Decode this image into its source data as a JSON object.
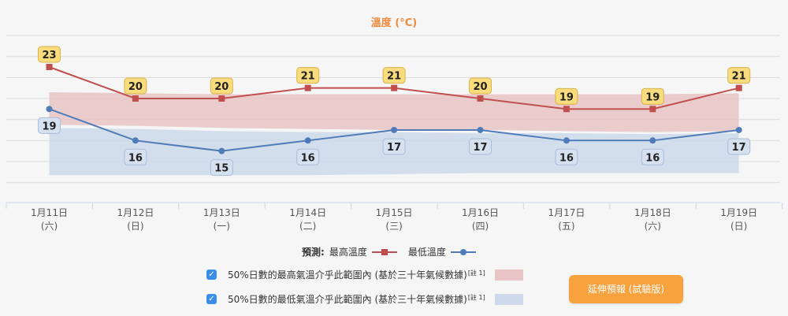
{
  "chart_data": {
    "type": "line",
    "title": "溫度 (°C)",
    "xlabel": "",
    "ylabel": "",
    "ylim": [
      11,
      27
    ],
    "grid": true,
    "categories": [
      "1月11日 (六)",
      "1月12日 (日)",
      "1月13日 (一)",
      "1月14日 (二)",
      "1月15日 (三)",
      "1月16日 (四)",
      "1月17日 (五)",
      "1月18日 (六)",
      "1月19日 (日)"
    ],
    "series": [
      {
        "name": "最高溫度",
        "color": "#c0504d",
        "marker": "square",
        "values": [
          23,
          20,
          20,
          21,
          21,
          20,
          19,
          19,
          21
        ]
      },
      {
        "name": "最低溫度",
        "color": "#4f7cb8",
        "marker": "circle",
        "values": [
          19,
          16,
          15,
          16,
          17,
          17,
          16,
          16,
          17
        ]
      }
    ],
    "bands": [
      {
        "name": "50%日數的最高氣溫介乎此範圍內",
        "color": "#e8c4c6",
        "upper": [
          20.6,
          20.5,
          20.4,
          20.4,
          20.4,
          20.4,
          20.4,
          20.4,
          20.5
        ],
        "lower": [
          17.5,
          17.4,
          17.2,
          17.1,
          17.0,
          17.0,
          16.9,
          16.8,
          16.9
        ]
      },
      {
        "name": "50%日數的最低氣溫介乎此範圍內",
        "color": "#cdd9ea",
        "upper": [
          17.2,
          17.1,
          16.9,
          16.8,
          16.8,
          16.7,
          16.7,
          16.6,
          16.7
        ],
        "lower": [
          12.7,
          12.7,
          12.7,
          12.7,
          12.8,
          12.9,
          12.9,
          12.9,
          12.9
        ]
      }
    ],
    "legend_position": "bottom"
  },
  "title": "溫度 (°C)",
  "x_axis": [
    {
      "date": "1月11日",
      "weekday": "(六)"
    },
    {
      "date": "1月12日",
      "weekday": "(日)"
    },
    {
      "date": "1月13日",
      "weekday": "(一)"
    },
    {
      "date": "1月14日",
      "weekday": "(二)"
    },
    {
      "date": "1月15日",
      "weekday": "(三)"
    },
    {
      "date": "1月16日",
      "weekday": "(四)"
    },
    {
      "date": "1月17日",
      "weekday": "(五)"
    },
    {
      "date": "1月18日",
      "weekday": "(六)"
    },
    {
      "date": "1月19日",
      "weekday": "(日)"
    }
  ],
  "legend": {
    "prefix": "預測:",
    "max_label": "最高溫度",
    "min_label": "最低溫度"
  },
  "bands_legend": {
    "max": {
      "text": "50%日數的最高氣溫介乎此範圍內 (基於三十年氣候數據)",
      "note": "[註 1]",
      "checked": true,
      "color": "#e8c4c6"
    },
    "min": {
      "text": "50%日數的最低氣溫介乎此範圍內 (基於三十年氣候數據)",
      "note": "[註 1]",
      "checked": true,
      "color": "#cdd9ea"
    }
  },
  "extended_forecast_button": "延伸預報 (試驗版)",
  "colors": {
    "title": "#f08a3c",
    "max_line": "#c0504d",
    "min_line": "#4f7cb8",
    "max_label_bg": "#f9dc7e",
    "min_label_bg": "#d6e1f0",
    "button": "#f7a23f",
    "checkbox": "#3b8ee8"
  }
}
